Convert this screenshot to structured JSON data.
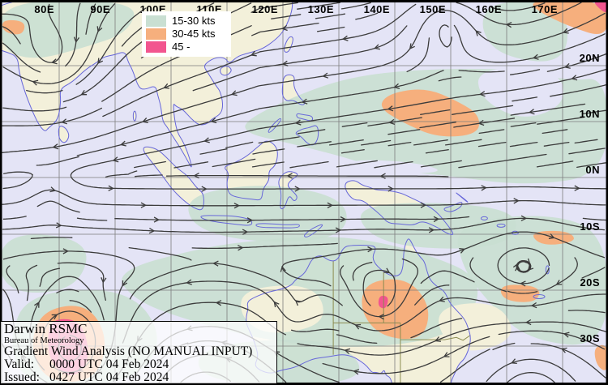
{
  "title_block": {
    "agency": "Darwin RSMC",
    "bureau": "Bureau of Meteorology",
    "product": "Gradient Wind Analysis (NO MANUAL INPUT)",
    "valid_label": "Valid:",
    "valid_value": "0000 UTC 04 Feb 2024",
    "issued_label": "Issued:",
    "issued_value": "0427 UTC 04 Feb 2024"
  },
  "legend": {
    "items": [
      {
        "label": "15-30 kts",
        "color": "#c9dfd2"
      },
      {
        "label": "30-45 kts",
        "color": "#f6af7d"
      },
      {
        "label": "45 -",
        "color": "#f2558f"
      }
    ]
  },
  "graticule": {
    "longitude_labels": [
      "80E",
      "90E",
      "100E",
      "110E",
      "120E",
      "130E",
      "140E",
      "150E",
      "160E",
      "170E"
    ],
    "latitude_labels": [
      "20N",
      "10N",
      "0N",
      "10S",
      "20S",
      "30S"
    ]
  },
  "map_colors": {
    "ocean": "#e4e4f6",
    "land": "#f3f0da",
    "shade_15_30": "#c9dfd2",
    "shade_30_45": "#f6af7d",
    "shade_45": "#f2558f",
    "grid": "#7d7d7d",
    "coastline": "#6767d9",
    "state_border": "#8b8b50",
    "streamline": "#3c3c3c",
    "frame": "#000000"
  }
}
